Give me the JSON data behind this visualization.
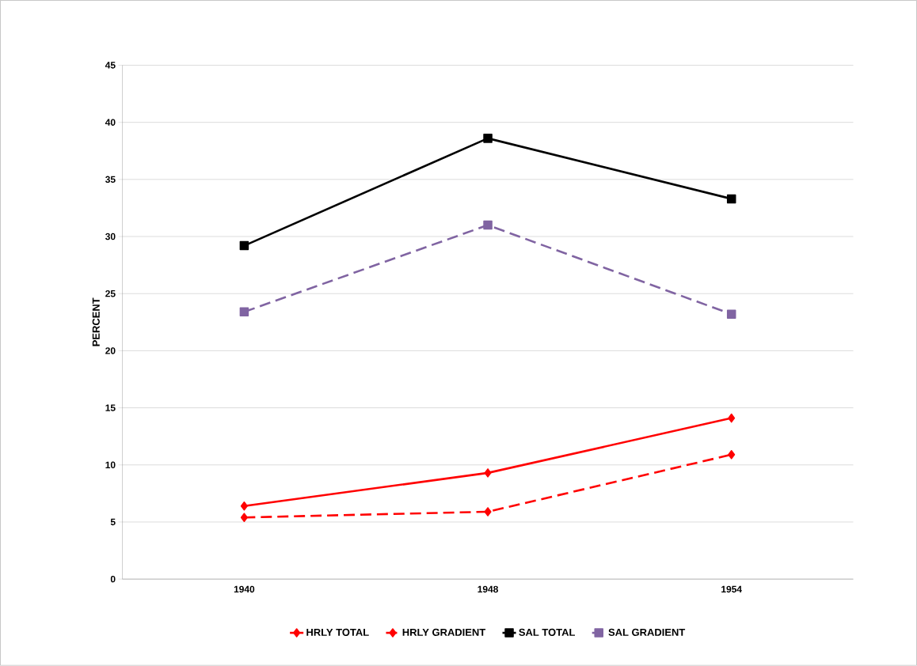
{
  "chart_data": {
    "type": "line",
    "ylabel": "PERCENT",
    "categories": [
      "1940",
      "1948",
      "1954"
    ],
    "series": [
      {
        "name": "HRLY TOTAL",
        "color": "#ff0000",
        "values": [
          6.4,
          9.3,
          14.1
        ],
        "marker": "diamond",
        "line_style": "solid"
      },
      {
        "name": "HRLY GRADIENT",
        "color": "#ff0000",
        "values": [
          5.4,
          5.9,
          10.9
        ],
        "marker": "diamond",
        "line_style": "dashed"
      },
      {
        "name": "SAL TOTAL",
        "color": "#000000",
        "values": [
          29.2,
          38.6,
          33.3
        ],
        "marker": "square",
        "line_style": "solid"
      },
      {
        "name": "SAL GRADIENT",
        "color": "#8064a2",
        "values": [
          23.4,
          31.0,
          23.2
        ],
        "marker": "square",
        "line_style": "dashed"
      }
    ],
    "ylim": [
      0,
      45
    ],
    "yticks": [
      0,
      5,
      10,
      15,
      20,
      25,
      30,
      35,
      40,
      45
    ],
    "grid": "y",
    "legend": "bottom"
  }
}
